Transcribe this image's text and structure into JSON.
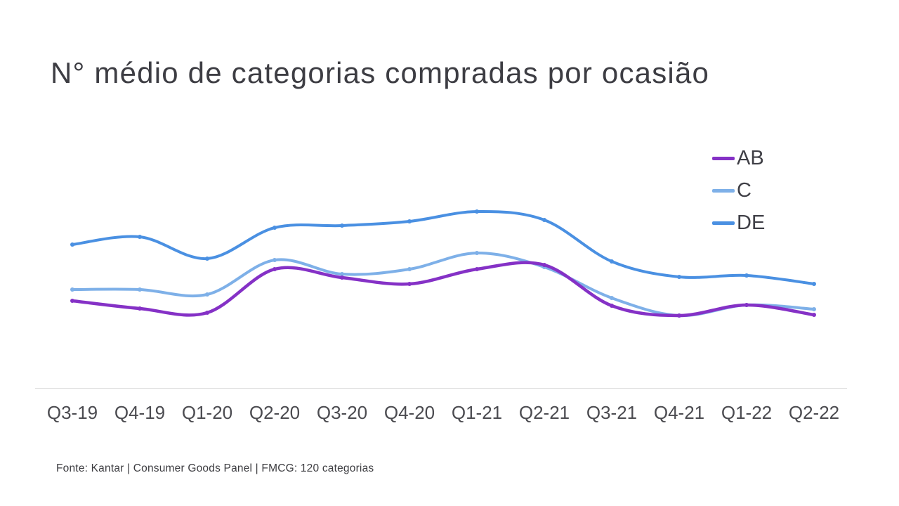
{
  "title": "N° médio de categorias compradas por ocasião",
  "footer": "Fonte: Kantar | Consumer Goods Panel | FMCG: 120 categorias",
  "chart_data": {
    "type": "line",
    "title": "N° médio de categorias compradas por ocasião",
    "categories": [
      "Q3-19",
      "Q4-19",
      "Q1-20",
      "Q2-20",
      "Q3-20",
      "Q4-20",
      "Q1-21",
      "Q2-21",
      "Q3-21",
      "Q4-21",
      "Q1-22",
      "Q2-22"
    ],
    "series": [
      {
        "name": "AB",
        "color": "#8531c6",
        "values": [
          1.72,
          1.61,
          1.55,
          2.17,
          2.05,
          1.96,
          2.17,
          2.23,
          1.65,
          1.51,
          1.66,
          1.52
        ]
      },
      {
        "name": "C",
        "color": "#7eb0e8",
        "values": [
          1.88,
          1.88,
          1.81,
          2.3,
          2.1,
          2.17,
          2.4,
          2.2,
          1.76,
          1.51,
          1.66,
          1.6
        ]
      },
      {
        "name": "DE",
        "color": "#4a90e2",
        "values": [
          2.52,
          2.63,
          2.32,
          2.76,
          2.79,
          2.85,
          2.99,
          2.87,
          2.28,
          2.06,
          2.08,
          1.96
        ]
      }
    ],
    "xlabel": "",
    "ylabel": "",
    "ylim": [
      0.5,
      4.2
    ],
    "grid": false,
    "y_axis_visible": false,
    "legend_position": "top-right",
    "markers": true,
    "smooth": true
  }
}
